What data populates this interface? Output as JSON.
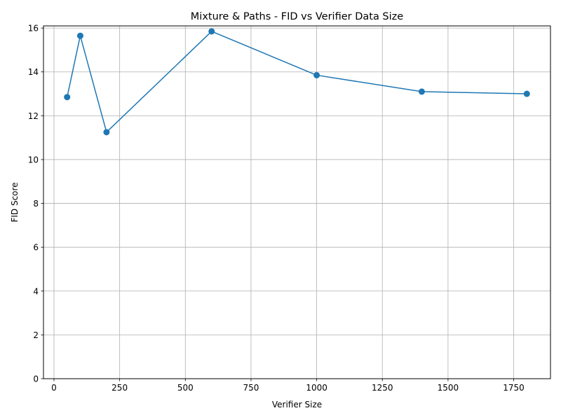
{
  "chart_data": {
    "type": "line",
    "title": "Mixture & Paths - FID vs Verifier Data Size",
    "xlabel": "Verifier Size",
    "ylabel": "FID Score",
    "xlim": [
      -40,
      1890
    ],
    "ylim": [
      0,
      16.1
    ],
    "xticks": [
      0,
      250,
      500,
      750,
      1000,
      1250,
      1500,
      1750
    ],
    "yticks": [
      0,
      2,
      4,
      6,
      8,
      10,
      12,
      14,
      16
    ],
    "grid": true,
    "series": [
      {
        "color": "#1f77b4",
        "marker": "circle",
        "x": [
          50,
          100,
          200,
          600,
          1000,
          1400,
          1800
        ],
        "y": [
          12.85,
          15.65,
          11.25,
          15.85,
          13.85,
          13.1,
          13.0
        ]
      }
    ]
  }
}
